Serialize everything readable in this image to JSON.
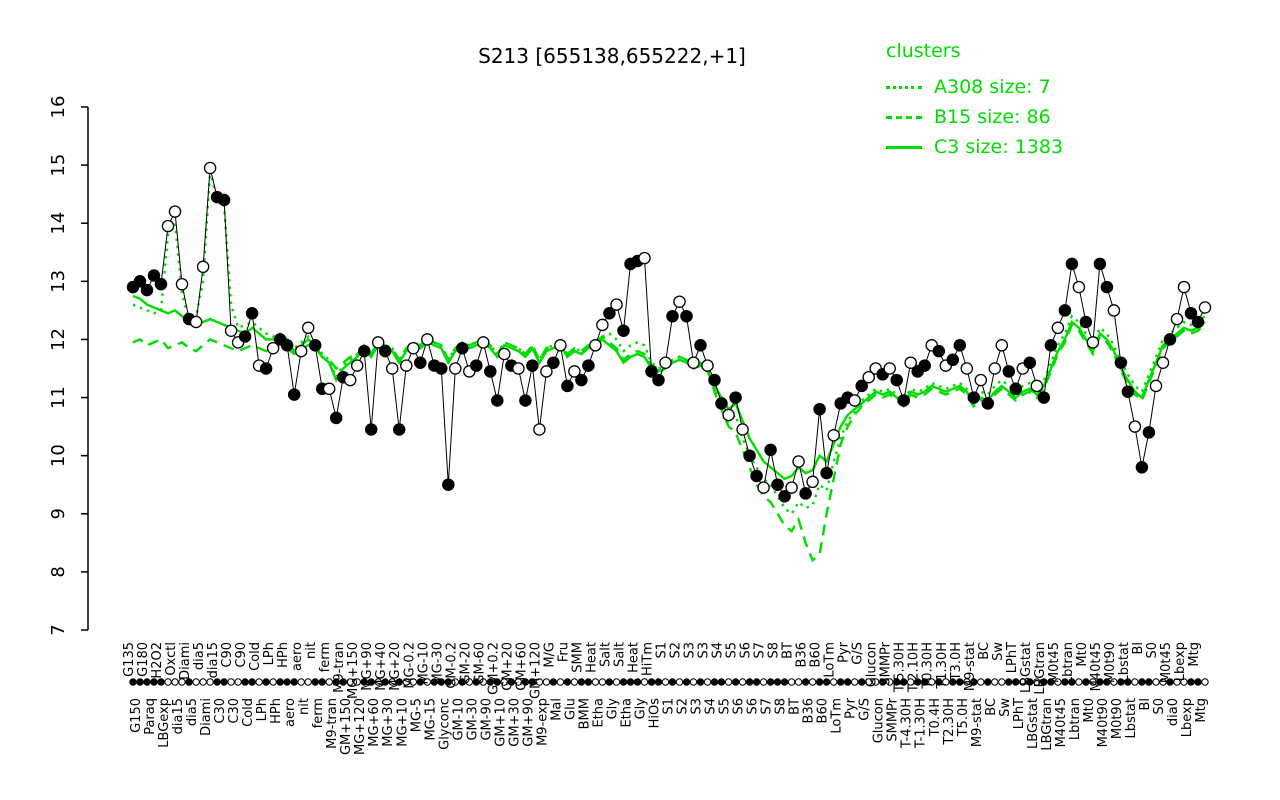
{
  "title": "S213 [655138,655222,+1]",
  "legend": {
    "title": "clusters",
    "color": "#00dd00",
    "entries": [
      {
        "label": "A308 size: 7",
        "line_style": "dotted"
      },
      {
        "label": "B15 size: 86",
        "line_style": "dashed"
      },
      {
        "label": "C3 size: 1383",
        "line_style": "solid"
      }
    ]
  },
  "chart_data": {
    "type": "line",
    "title": "S213 [655138,655222,+1]",
    "ylim": [
      7,
      16
    ],
    "yticks": [
      7,
      8,
      9,
      10,
      11,
      12,
      13,
      14,
      15,
      16
    ],
    "grid": false,
    "legend_position": "top-right",
    "x_labels": [
      "G135",
      "G150",
      "G180",
      "Paraq",
      "H2O2",
      "LBGexp",
      "Oxctl",
      "dia15",
      "Diami",
      "dia5",
      "dia5",
      "Diami",
      "dia15",
      "C30",
      "C90",
      "C30",
      "C90",
      "Cold",
      "Cold",
      "LPh",
      "LPh",
      "HPh",
      "HPh",
      "aero",
      "aero",
      "nit",
      "nit",
      "ferm",
      "ferm",
      "M9-tran",
      "M9-tran",
      "GM+150",
      "MG+150",
      "MG+120",
      "MG+90",
      "MG+60",
      "MG+40",
      "MG+30",
      "MG+20",
      "MG+10",
      "MG-0.2",
      "MG-5",
      "MG-10",
      "MG-15",
      "MG-30",
      "Glyconc",
      "GM-0.2",
      "GM-10",
      "GM-20",
      "GM-30",
      "GM-60",
      "GM-90",
      "GM+0.2",
      "GM+10",
      "GM+20",
      "GM+30",
      "GM+60",
      "GM+90",
      "GM+120",
      "M9-exp",
      "M/G",
      "Mal",
      "Fru",
      "Glu",
      "SMM",
      "BMM",
      "Heat",
      "Etha",
      "Salt",
      "Gly",
      "Salt",
      "Etha",
      "Heat",
      "Gly",
      "HiTm",
      "HiOs",
      "S1",
      "S1",
      "S2",
      "S2",
      "S3",
      "S3",
      "S3",
      "S4",
      "S4",
      "S5",
      "S5",
      "S6",
      "S6",
      "S6",
      "S7",
      "S7",
      "S8",
      "S8",
      "BT",
      "BT",
      "B36",
      "B36",
      "B60",
      "B60",
      "LoTm",
      "LoTm",
      "Pyr",
      "Pyr",
      "G/S",
      "G/S",
      "Glucon",
      "Glucon",
      "SMMPr",
      "SMMPr",
      "T-5.30H",
      "T-4.30H",
      "T-2.10H",
      "T-1.30H",
      "T0.30H",
      "T0.4H",
      "T1.30H",
      "T2.30H",
      "T3.0H",
      "T5.0H",
      "M9-stat",
      "M9-stat",
      "BC",
      "BC",
      "Sw",
      "Sw",
      "LPhT",
      "LPhT",
      "LBGstat",
      "LBGstat",
      "LBGtran",
      "LBGtran",
      "M0t45",
      "M40t45",
      "Lbtran",
      "Lbtran",
      "Mt0",
      "Mt0",
      "M40t45",
      "M40t90",
      "M0t90",
      "M0t90",
      "Lbstat",
      "Lbstat",
      "Bl",
      "Bl",
      "S0",
      "S0",
      "M0t45",
      "dia0",
      "Lbexp",
      "Lbexp",
      "Mtg",
      "Mtg"
    ],
    "series": [
      {
        "name": "gene S213",
        "style": "points+line",
        "color": "#000000",
        "point_filled": "1111100010001100110101110011011001101010010111010101101011001010110010111011010101011010110111001011011010010110110101101010011010110110101101101100100110",
        "values": [
          12.9,
          13.0,
          12.85,
          13.1,
          12.95,
          13.95,
          14.2,
          12.95,
          12.35,
          12.3,
          13.25,
          14.95,
          14.45,
          14.4,
          12.15,
          11.95,
          12.05,
          12.45,
          11.55,
          11.5,
          11.85,
          12.0,
          11.9,
          11.05,
          11.8,
          12.2,
          11.9,
          11.15,
          11.15,
          10.65,
          11.35,
          11.3,
          11.55,
          11.8,
          10.45,
          11.95,
          11.8,
          11.5,
          10.45,
          11.55,
          11.85,
          11.6,
          12.0,
          11.55,
          11.5,
          9.5,
          11.5,
          11.85,
          11.45,
          11.55,
          11.95,
          11.45,
          10.95,
          11.75,
          11.55,
          11.5,
          10.95,
          11.55,
          10.45,
          11.45,
          11.6,
          11.9,
          11.2,
          11.45,
          11.3,
          11.55,
          11.9,
          12.25,
          12.45,
          12.6,
          12.15,
          13.3,
          13.35,
          13.4,
          11.45,
          11.3,
          11.6,
          12.4,
          12.65,
          12.4,
          11.6,
          11.9,
          11.55,
          11.3,
          10.9,
          10.7,
          11.0,
          10.45,
          10.0,
          9.65,
          9.45,
          10.1,
          9.5,
          9.3,
          9.45,
          9.9,
          9.35,
          9.55,
          10.8,
          9.7,
          10.35,
          10.9,
          11.0,
          10.95,
          11.2,
          11.35,
          11.5,
          11.4,
          11.5,
          11.3,
          10.95,
          11.6,
          11.45,
          11.55,
          11.9,
          11.8,
          11.55,
          11.65,
          11.9,
          11.5,
          11.0,
          11.3,
          10.9,
          11.5,
          11.9,
          11.45,
          11.15,
          11.5,
          11.6,
          11.2,
          11.0,
          11.9,
          12.2,
          12.5,
          13.3,
          12.9,
          12.3,
          11.95,
          13.3,
          12.9,
          12.5,
          11.6,
          11.1,
          10.5,
          9.8,
          10.4,
          11.2,
          11.6,
          12.0,
          12.35,
          12.9,
          12.45,
          12.3,
          12.55
        ]
      },
      {
        "name": "A308",
        "style": "dotted",
        "color": "#00dd00",
        "values": [
          12.6,
          12.55,
          12.5,
          12.45,
          12.5,
          13.8,
          14.0,
          12.8,
          12.3,
          12.4,
          13.0,
          14.9,
          14.4,
          14.3,
          12.6,
          12.2,
          12.25,
          12.3,
          12.2,
          12.1,
          12.05,
          12.1,
          12.0,
          11.85,
          11.95,
          12.05,
          11.95,
          11.75,
          11.65,
          11.35,
          11.55,
          11.65,
          11.75,
          11.9,
          11.75,
          11.95,
          11.9,
          11.85,
          11.65,
          11.85,
          11.95,
          11.9,
          12.0,
          11.95,
          11.9,
          11.65,
          11.85,
          11.95,
          11.9,
          11.95,
          12.0,
          11.9,
          11.75,
          11.95,
          11.9,
          11.85,
          11.75,
          11.9,
          11.65,
          11.85,
          11.9,
          11.95,
          11.75,
          11.85,
          11.8,
          11.9,
          11.95,
          12.05,
          12.1,
          12.0,
          11.8,
          11.9,
          11.95,
          11.9,
          11.6,
          11.5,
          11.55,
          11.65,
          11.7,
          11.65,
          11.55,
          11.6,
          11.5,
          11.15,
          10.9,
          10.6,
          10.7,
          10.3,
          10.0,
          9.8,
          9.6,
          9.5,
          9.3,
          9.1,
          9.0,
          9.2,
          9.1,
          9.15,
          9.5,
          9.4,
          9.9,
          10.3,
          10.6,
          10.75,
          10.95,
          11.05,
          11.15,
          11.1,
          11.15,
          11.05,
          10.95,
          11.15,
          11.1,
          11.15,
          11.25,
          11.2,
          11.15,
          11.2,
          11.25,
          11.15,
          11.0,
          11.1,
          11.05,
          11.2,
          11.3,
          11.2,
          11.1,
          11.2,
          11.25,
          11.15,
          11.3,
          11.6,
          11.9,
          12.1,
          12.4,
          12.3,
          12.1,
          11.9,
          12.2,
          12.1,
          11.9,
          11.6,
          11.4,
          11.2,
          11.1,
          11.4,
          11.7,
          12.0,
          12.1,
          12.2,
          12.3,
          12.25,
          12.3,
          12.4
        ]
      },
      {
        "name": "B15",
        "style": "dashed",
        "color": "#00dd00",
        "values": [
          11.95,
          12.0,
          11.9,
          11.95,
          12.0,
          11.85,
          11.9,
          11.95,
          11.85,
          11.8,
          11.9,
          12.0,
          11.95,
          11.9,
          11.85,
          11.8,
          11.85,
          11.9,
          11.85,
          11.8,
          11.9,
          11.95,
          11.85,
          11.75,
          11.85,
          11.9,
          11.85,
          11.7,
          11.65,
          11.5,
          11.6,
          11.7,
          11.75,
          11.9,
          11.75,
          11.95,
          11.9,
          11.85,
          11.65,
          11.85,
          11.95,
          11.9,
          12.0,
          11.95,
          11.9,
          11.65,
          11.85,
          11.95,
          11.9,
          11.95,
          12.0,
          11.9,
          11.75,
          11.95,
          11.9,
          11.85,
          11.75,
          11.9,
          11.65,
          11.85,
          11.9,
          11.95,
          11.75,
          11.85,
          11.8,
          11.9,
          11.95,
          12.05,
          11.95,
          11.85,
          11.65,
          11.75,
          11.8,
          11.75,
          11.55,
          11.5,
          11.55,
          11.65,
          11.7,
          11.65,
          11.55,
          11.6,
          11.5,
          11.1,
          10.8,
          10.5,
          10.4,
          10.1,
          9.8,
          9.5,
          9.3,
          9.2,
          9.0,
          8.8,
          8.7,
          8.9,
          8.5,
          8.2,
          8.3,
          9.0,
          9.6,
          10.2,
          10.5,
          10.7,
          10.85,
          10.95,
          11.05,
          11.0,
          11.05,
          10.95,
          10.85,
          11.05,
          11.0,
          11.05,
          11.15,
          11.1,
          11.05,
          11.1,
          11.15,
          11.05,
          10.85,
          10.95,
          10.9,
          11.05,
          11.15,
          11.05,
          10.95,
          11.05,
          11.1,
          11.0,
          11.15,
          11.45,
          11.75,
          11.95,
          12.25,
          12.15,
          11.95,
          11.75,
          12.05,
          11.95,
          11.75,
          11.45,
          11.25,
          11.05,
          10.95,
          11.25,
          11.55,
          11.85,
          11.95,
          12.05,
          12.15,
          12.1,
          12.15,
          12.25
        ]
      },
      {
        "name": "C3",
        "style": "solid",
        "color": "#00dd00",
        "values": [
          12.75,
          12.7,
          12.6,
          12.55,
          12.5,
          12.45,
          12.5,
          12.4,
          12.3,
          12.25,
          12.3,
          12.35,
          12.3,
          12.25,
          12.2,
          12.15,
          12.1,
          12.2,
          12.1,
          12.0,
          12.0,
          12.05,
          11.95,
          11.8,
          11.9,
          12.0,
          11.9,
          11.7,
          11.6,
          11.3,
          11.5,
          11.6,
          11.7,
          11.85,
          11.7,
          11.9,
          11.85,
          11.8,
          11.6,
          11.8,
          11.9,
          11.85,
          11.95,
          11.9,
          11.85,
          11.6,
          11.8,
          11.9,
          11.85,
          11.9,
          11.95,
          11.85,
          11.7,
          11.9,
          11.85,
          11.8,
          11.7,
          11.85,
          11.6,
          11.8,
          11.85,
          11.9,
          11.7,
          11.8,
          11.75,
          11.85,
          11.9,
          12.0,
          11.9,
          11.8,
          11.6,
          11.7,
          11.75,
          11.7,
          11.5,
          11.45,
          11.5,
          11.6,
          11.65,
          11.6,
          11.5,
          11.55,
          11.45,
          11.2,
          11.0,
          10.8,
          10.9,
          10.6,
          10.3,
          10.1,
          9.9,
          9.8,
          9.7,
          9.6,
          9.65,
          9.8,
          9.7,
          9.75,
          10.0,
          9.9,
          10.2,
          10.5,
          10.7,
          10.8,
          10.9,
          11.0,
          11.1,
          11.05,
          11.1,
          11.0,
          10.9,
          11.1,
          11.05,
          11.1,
          11.2,
          11.15,
          11.1,
          11.15,
          11.2,
          11.1,
          10.9,
          11.0,
          10.95,
          11.1,
          11.2,
          11.1,
          11.0,
          11.1,
          11.15,
          11.05,
          11.2,
          11.5,
          11.8,
          12.0,
          12.3,
          12.2,
          12.0,
          11.8,
          12.1,
          12.0,
          11.8,
          11.5,
          11.3,
          11.1,
          11.0,
          11.3,
          11.6,
          11.9,
          12.0,
          12.1,
          12.2,
          12.15,
          12.2,
          12.3
        ]
      }
    ]
  }
}
